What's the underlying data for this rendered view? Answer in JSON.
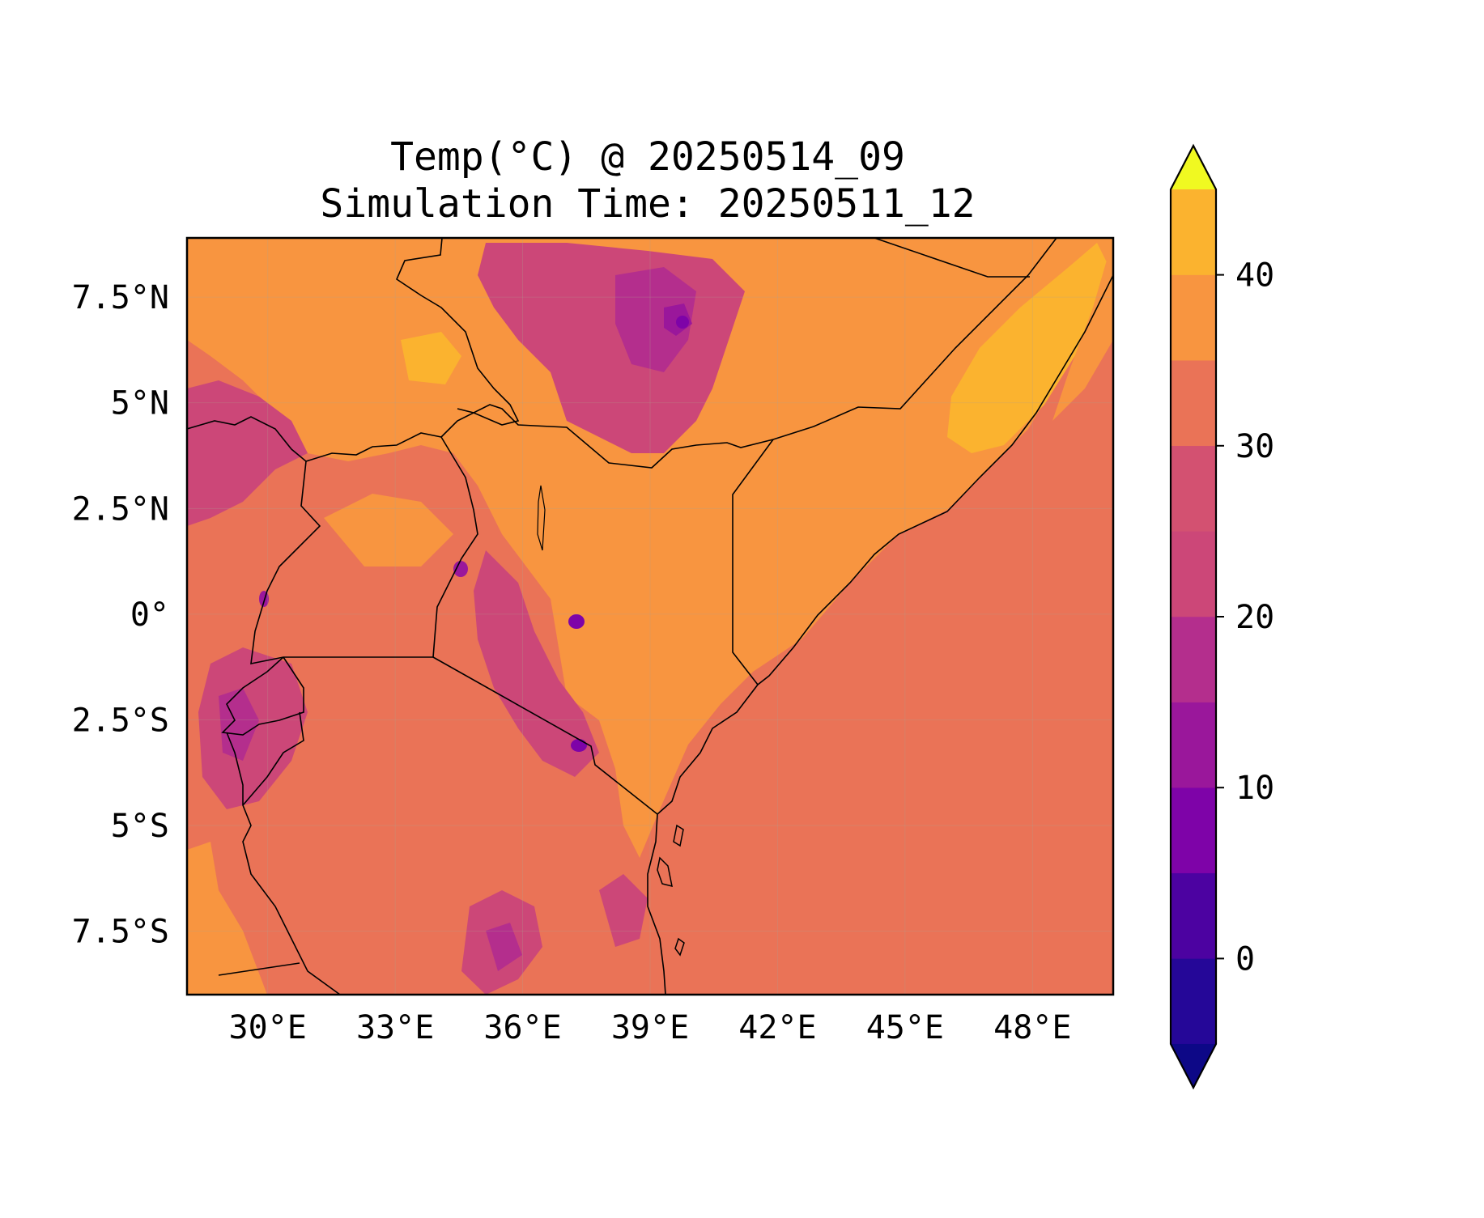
{
  "title": {
    "line1": "Temp(°C) @ 20250514_09",
    "line2": "Simulation Time: 20250511_12"
  },
  "map": {
    "lon_range": [
      28.1,
      49.9
    ],
    "lat_range": [
      -9.0,
      8.9
    ],
    "lon_ticks": [
      {
        "value": 30,
        "label": "30°E"
      },
      {
        "value": 33,
        "label": "33°E"
      },
      {
        "value": 36,
        "label": "36°E"
      },
      {
        "value": 39,
        "label": "39°E"
      },
      {
        "value": 42,
        "label": "42°E"
      },
      {
        "value": 45,
        "label": "45°E"
      },
      {
        "value": 48,
        "label": "48°E"
      }
    ],
    "lat_ticks": [
      {
        "value": 7.5,
        "label": "7.5°N"
      },
      {
        "value": 5,
        "label": "5°N"
      },
      {
        "value": 2.5,
        "label": "2.5°N"
      },
      {
        "value": 0,
        "label": "0°"
      },
      {
        "value": -2.5,
        "label": "2.5°S"
      },
      {
        "value": -5,
        "label": "5°S"
      },
      {
        "value": -7.5,
        "label": "7.5°S"
      }
    ],
    "gridlines": true,
    "fill_default_color": "#ea7357"
  },
  "colorbar": {
    "levels": [
      -5,
      0,
      5,
      10,
      15,
      20,
      25,
      30,
      35,
      40,
      45
    ],
    "colors": [
      "#250798",
      "#4c02a1",
      "#7e03a8",
      "#9a179b",
      "#b42e8d",
      "#cc4778",
      "#d35171",
      "#ea7357",
      "#f89540",
      "#fbb32f",
      "#f2e024"
    ],
    "under_color": "#0d0887",
    "over_color": "#f0f921",
    "extend": "both",
    "tick_values": [
      0,
      10,
      20,
      30,
      40
    ],
    "tick_labels": [
      "0",
      "10",
      "20",
      "30",
      "40"
    ]
  }
}
